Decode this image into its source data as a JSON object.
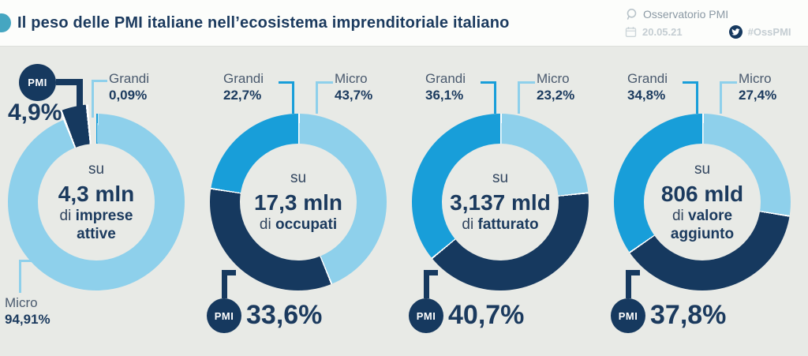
{
  "header": {
    "title": "Il peso delle PMI italiane nell’ecosistema imprenditoriale italiano",
    "source": "Osservatorio PMI",
    "date": "20.05.21",
    "hashtag": "#OssPMI"
  },
  "colors": {
    "pmi": "#16395f",
    "grandi": "#189ed9",
    "micro": "#8ed0eb",
    "background": "#e8eae6",
    "header_background": "#fcfdfb",
    "navy_text": "#1b3a5e",
    "label_text": "#4a5a6e",
    "muted_text": "#c4cdd2",
    "logo_teal": "#45a6c1"
  },
  "icons": {
    "source_icon": "lens-bubble",
    "date_icon": "calendar",
    "social_icon": "twitter-bird"
  },
  "chart_data": [
    {
      "type": "donut",
      "unit": "percent",
      "center": {
        "prefix": "su",
        "value": "4,3 mln",
        "connector": "di",
        "label": "imprese attive"
      },
      "slices": [
        {
          "label": "Grandi",
          "value": 0.09,
          "display": "0,09%",
          "color": "grandi"
        },
        {
          "label": "Micro",
          "value": 94.91,
          "display": "94,91%",
          "color": "micro"
        },
        {
          "label": "PMI",
          "value": 4.9,
          "display": "4,9%",
          "color": "pmi",
          "exploded": true
        }
      ]
    },
    {
      "type": "donut",
      "unit": "percent",
      "center": {
        "prefix": "su",
        "value": "17,3 mln",
        "connector": "di",
        "label": "occupati"
      },
      "slices": [
        {
          "label": "Micro",
          "value": 43.7,
          "display": "43,7%",
          "color": "micro"
        },
        {
          "label": "PMI",
          "value": 33.6,
          "display": "33,6%",
          "color": "pmi"
        },
        {
          "label": "Grandi",
          "value": 22.7,
          "display": "22,7%",
          "color": "grandi"
        }
      ]
    },
    {
      "type": "donut",
      "unit": "percent",
      "center": {
        "prefix": "su",
        "value": "3,137 mld",
        "connector": "di",
        "label": "fatturato"
      },
      "slices": [
        {
          "label": "Micro",
          "value": 23.2,
          "display": "23,2%",
          "color": "micro"
        },
        {
          "label": "PMI",
          "value": 40.7,
          "display": "40,7%",
          "color": "pmi"
        },
        {
          "label": "Grandi",
          "value": 36.1,
          "display": "36,1%",
          "color": "grandi"
        }
      ]
    },
    {
      "type": "donut",
      "unit": "percent",
      "center": {
        "prefix": "su",
        "value": "806 mld",
        "connector": "di",
        "label": "valore aggiunto"
      },
      "slices": [
        {
          "label": "Micro",
          "value": 27.4,
          "display": "27,4%",
          "color": "micro"
        },
        {
          "label": "PMI",
          "value": 37.8,
          "display": "37,8%",
          "color": "pmi"
        },
        {
          "label": "Grandi",
          "value": 34.8,
          "display": "34,8%",
          "color": "grandi"
        }
      ]
    }
  ]
}
